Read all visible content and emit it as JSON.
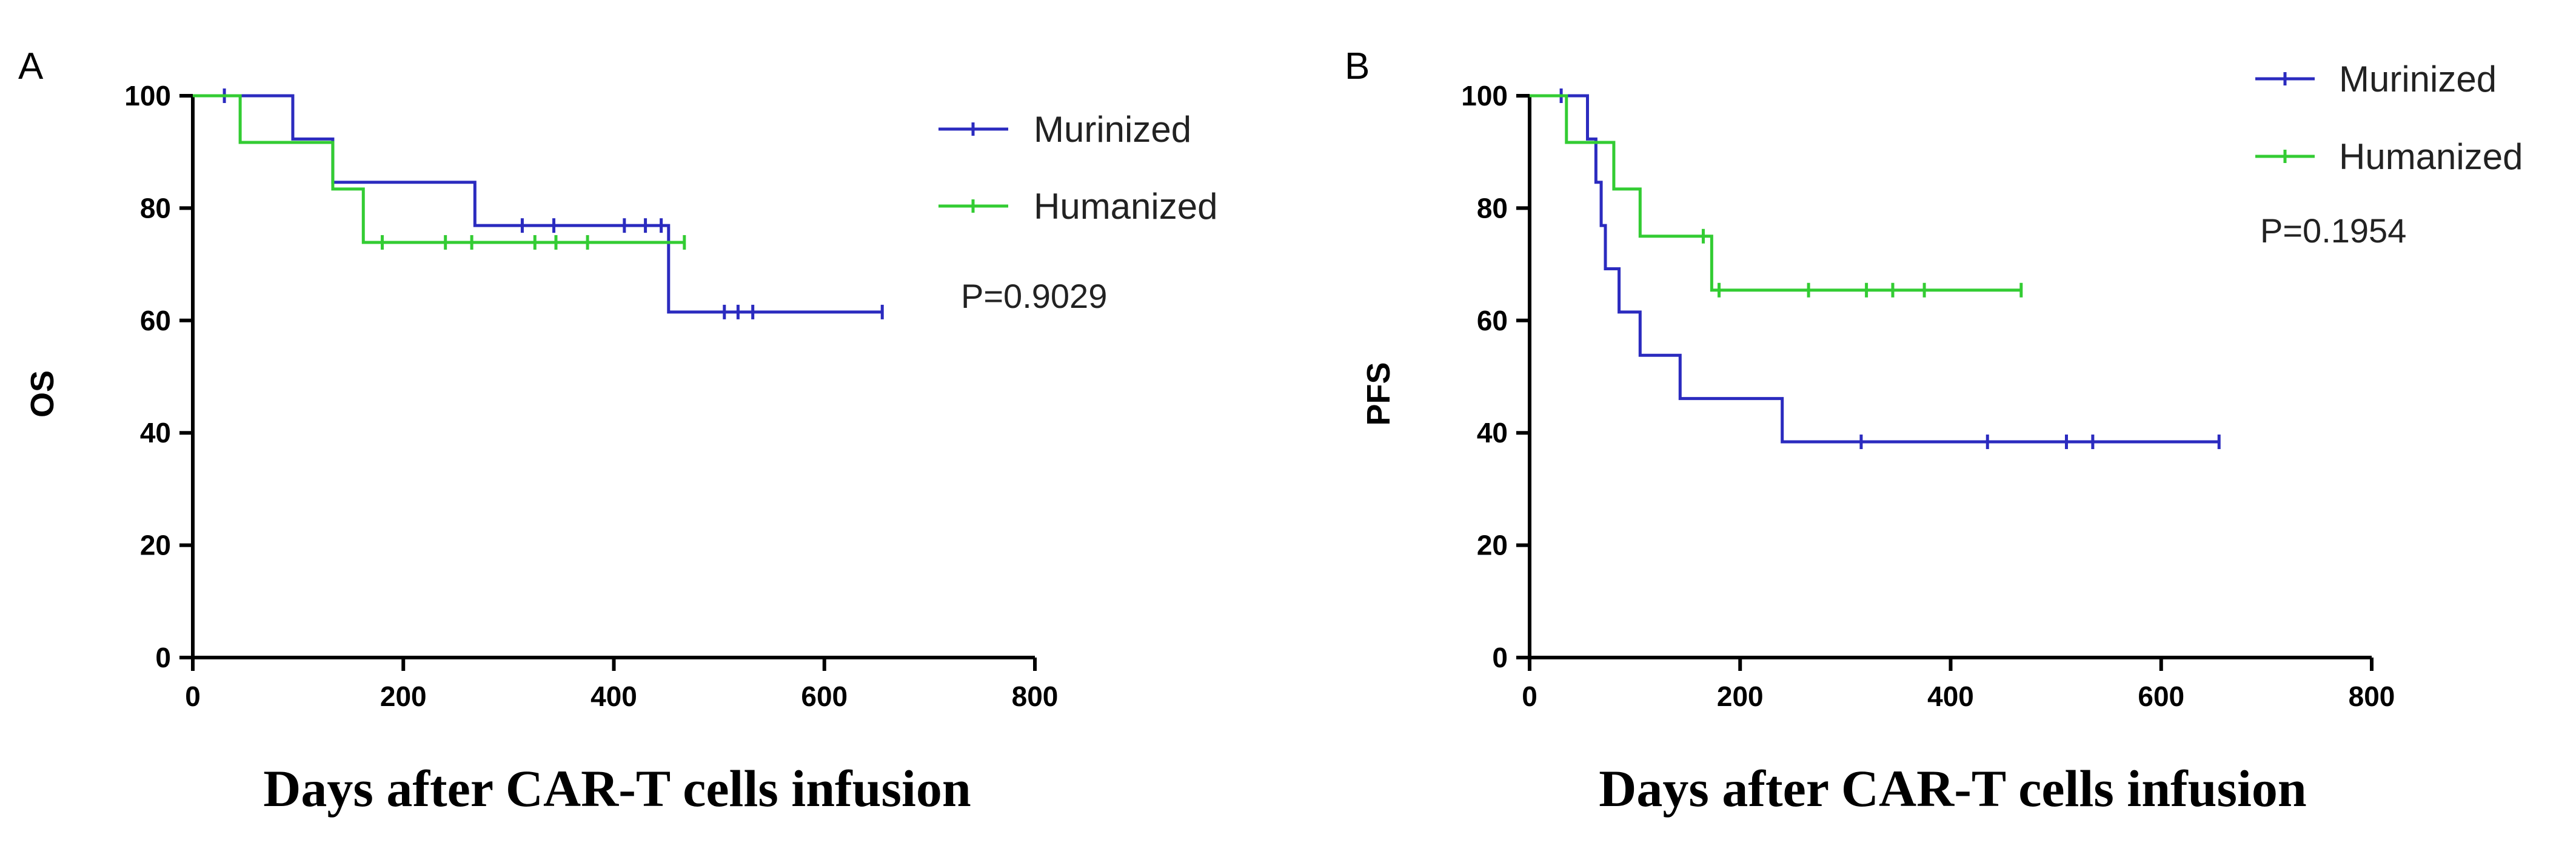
{
  "chart_data": [
    {
      "type": "line",
      "subtype": "kaplan-meier",
      "panel": "A",
      "ylabel": "OS",
      "xlabel": "Days after CAR-T cells infusion",
      "xlim": [
        0,
        800
      ],
      "ylim": [
        0,
        100
      ],
      "xticks": [
        0,
        200,
        400,
        600,
        800
      ],
      "yticks": [
        0,
        20,
        40,
        60,
        80,
        100
      ],
      "pvalue": "P=0.9029",
      "legend_position": "top-right",
      "series": [
        {
          "name": "Murinized",
          "color": "#2b2bbf",
          "steps": [
            [
              0,
              100
            ],
            [
              95,
              92.3
            ],
            [
              133,
              84.6
            ],
            [
              268,
              76.9
            ],
            [
              452,
              61.5
            ],
            [
              655,
              61.5
            ]
          ],
          "censors": [
            [
              30,
              100
            ],
            [
              313,
              76.9
            ],
            [
              343,
              76.9
            ],
            [
              410,
              76.9
            ],
            [
              430,
              76.9
            ],
            [
              445,
              76.9
            ],
            [
              505,
              61.5
            ],
            [
              518,
              61.5
            ],
            [
              532,
              61.5
            ],
            [
              655,
              61.5
            ]
          ]
        },
        {
          "name": "Humanized",
          "color": "#33cc33",
          "steps": [
            [
              0,
              100
            ],
            [
              45,
              91.7
            ],
            [
              133,
              83.4
            ],
            [
              162,
              73.9
            ],
            [
              467,
              73.9
            ]
          ],
          "censors": [
            [
              180,
              73.9
            ],
            [
              240,
              73.9
            ],
            [
              265,
              73.9
            ],
            [
              325,
              73.9
            ],
            [
              345,
              73.9
            ],
            [
              375,
              73.9
            ],
            [
              467,
              73.9
            ]
          ]
        }
      ]
    },
    {
      "type": "line",
      "subtype": "kaplan-meier",
      "panel": "B",
      "ylabel": "PFS",
      "xlabel": "Days after CAR-T cells infusion",
      "xlim": [
        0,
        800
      ],
      "ylim": [
        0,
        100
      ],
      "xticks": [
        0,
        200,
        400,
        600,
        800
      ],
      "yticks": [
        0,
        20,
        40,
        60,
        80,
        100
      ],
      "pvalue": "P=0.1954",
      "legend_position": "top-right",
      "series": [
        {
          "name": "Murinized",
          "color": "#2b2bbf",
          "steps": [
            [
              0,
              100
            ],
            [
              55,
              92.3
            ],
            [
              63,
              84.6
            ],
            [
              68,
              76.9
            ],
            [
              72,
              69.2
            ],
            [
              85,
              61.5
            ],
            [
              105,
              53.8
            ],
            [
              143,
              46.1
            ],
            [
              240,
              38.4
            ],
            [
              655,
              38.4
            ]
          ],
          "censors": [
            [
              30,
              100
            ],
            [
              315,
              38.4
            ],
            [
              435,
              38.4
            ],
            [
              510,
              38.4
            ],
            [
              535,
              38.4
            ],
            [
              655,
              38.4
            ]
          ]
        },
        {
          "name": "Humanized",
          "color": "#33cc33",
          "steps": [
            [
              0,
              100
            ],
            [
              35,
              91.7
            ],
            [
              80,
              83.4
            ],
            [
              105,
              75.0
            ],
            [
              173,
              65.4
            ],
            [
              467,
              65.4
            ]
          ],
          "censors": [
            [
              165,
              75.0
            ],
            [
              180,
              65.4
            ],
            [
              265,
              65.4
            ],
            [
              320,
              65.4
            ],
            [
              345,
              65.4
            ],
            [
              375,
              65.4
            ],
            [
              467,
              65.4
            ]
          ]
        }
      ]
    }
  ]
}
